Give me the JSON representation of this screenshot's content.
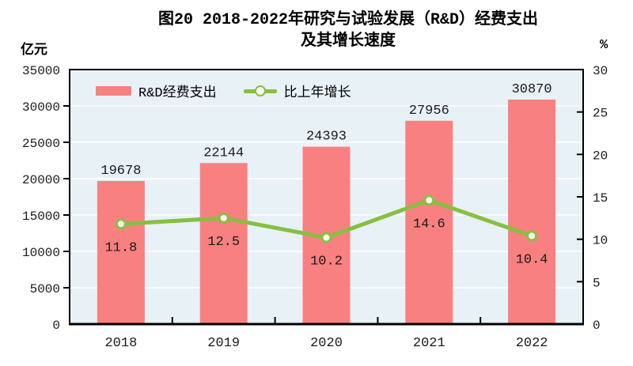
{
  "title": {
    "line1": "图20  2018-2022年研究与试验发展（R&D）经费支出",
    "line2": "及其增长速度"
  },
  "left_axis_unit": "亿元",
  "right_axis_unit": "%",
  "legend": {
    "bar_label": "R&D经费支出",
    "line_label": "比上年增长"
  },
  "chart_data": {
    "type": "bar",
    "subtype": "bar+line combo, dual axis",
    "title": "图20 2018-2022年研究与试验发展（R&D）经费支出及其增长速度",
    "categories": [
      "2018",
      "2019",
      "2020",
      "2021",
      "2022"
    ],
    "series": [
      {
        "name": "R&D经费支出",
        "type": "bar",
        "axis": "left",
        "unit": "亿元",
        "values": [
          19678,
          22144,
          24393,
          27956,
          30870
        ]
      },
      {
        "name": "比上年增长",
        "type": "line",
        "axis": "right",
        "unit": "%",
        "values": [
          11.8,
          12.5,
          10.2,
          14.6,
          10.4
        ]
      }
    ],
    "left_axis": {
      "label": "亿元",
      "min": 0,
      "max": 35000,
      "step": 5000,
      "ticks": [
        0,
        5000,
        10000,
        15000,
        20000,
        25000,
        30000,
        35000
      ]
    },
    "right_axis": {
      "label": "%",
      "min": 0,
      "max": 30,
      "step": 5,
      "ticks": [
        0,
        5,
        10,
        15,
        20,
        25,
        30
      ]
    },
    "grid": true,
    "legend_position": "top-left-inside",
    "colors": {
      "bar": "#F98080",
      "line": "#87C040",
      "marker_fill": "#FDFDF0",
      "marker_stroke": "#87C040",
      "plot_bg": "#E8F1F6",
      "grid": "#FFFFFF",
      "axis": "#000000",
      "text": "#1A1A1A"
    }
  }
}
